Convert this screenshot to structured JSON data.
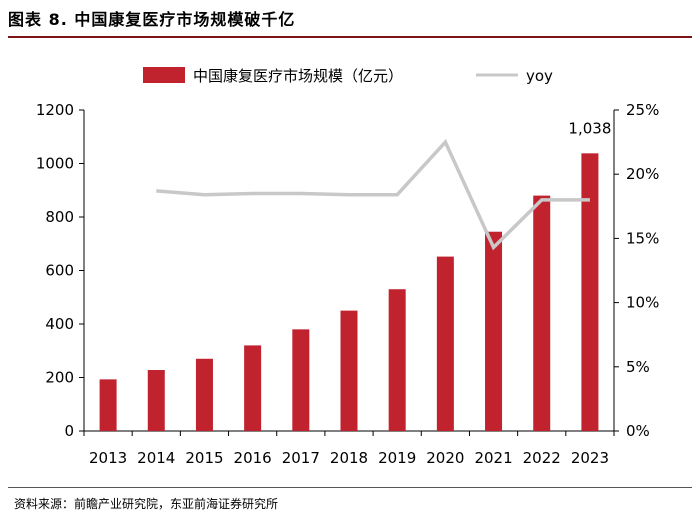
{
  "figure": {
    "title": "图表 8.   中国康复医疗市场规模破千亿",
    "source": "资料来源：前瞻产业研究院，东亚前海证券研究所"
  },
  "chart_data": {
    "type": "bar",
    "categories": [
      "2013",
      "2014",
      "2015",
      "2016",
      "2017",
      "2018",
      "2019",
      "2020",
      "2021",
      "2022",
      "2023"
    ],
    "series": [
      {
        "name": "中国康复医疗市场规模（亿元）",
        "type": "bar",
        "axis": "left",
        "color": "#c0222e",
        "values": [
          193,
          228,
          270,
          320,
          380,
          450,
          530,
          652,
          745,
          880,
          1038
        ]
      },
      {
        "name": "yoy",
        "type": "line",
        "axis": "right",
        "color": "#c8c8c8",
        "values": [
          null,
          18.7,
          18.4,
          18.5,
          18.5,
          18.4,
          18.4,
          22.5,
          14.3,
          18.0,
          18.0
        ]
      }
    ],
    "y_left": {
      "min": 0,
      "max": 1200,
      "ticks": [
        0,
        200,
        400,
        600,
        800,
        1000,
        1200
      ]
    },
    "y_right": {
      "min": 0,
      "max": 25,
      "ticks": [
        0,
        5,
        10,
        15,
        20,
        25
      ],
      "tick_labels": [
        "0%",
        "5%",
        "10%",
        "15%",
        "20%",
        "25%"
      ]
    },
    "annotations": [
      {
        "category": "2023",
        "text": "1,038"
      }
    ],
    "legend": {
      "position": "top",
      "items": [
        "中国康复医疗市场规模（亿元）",
        "yoy"
      ]
    }
  }
}
